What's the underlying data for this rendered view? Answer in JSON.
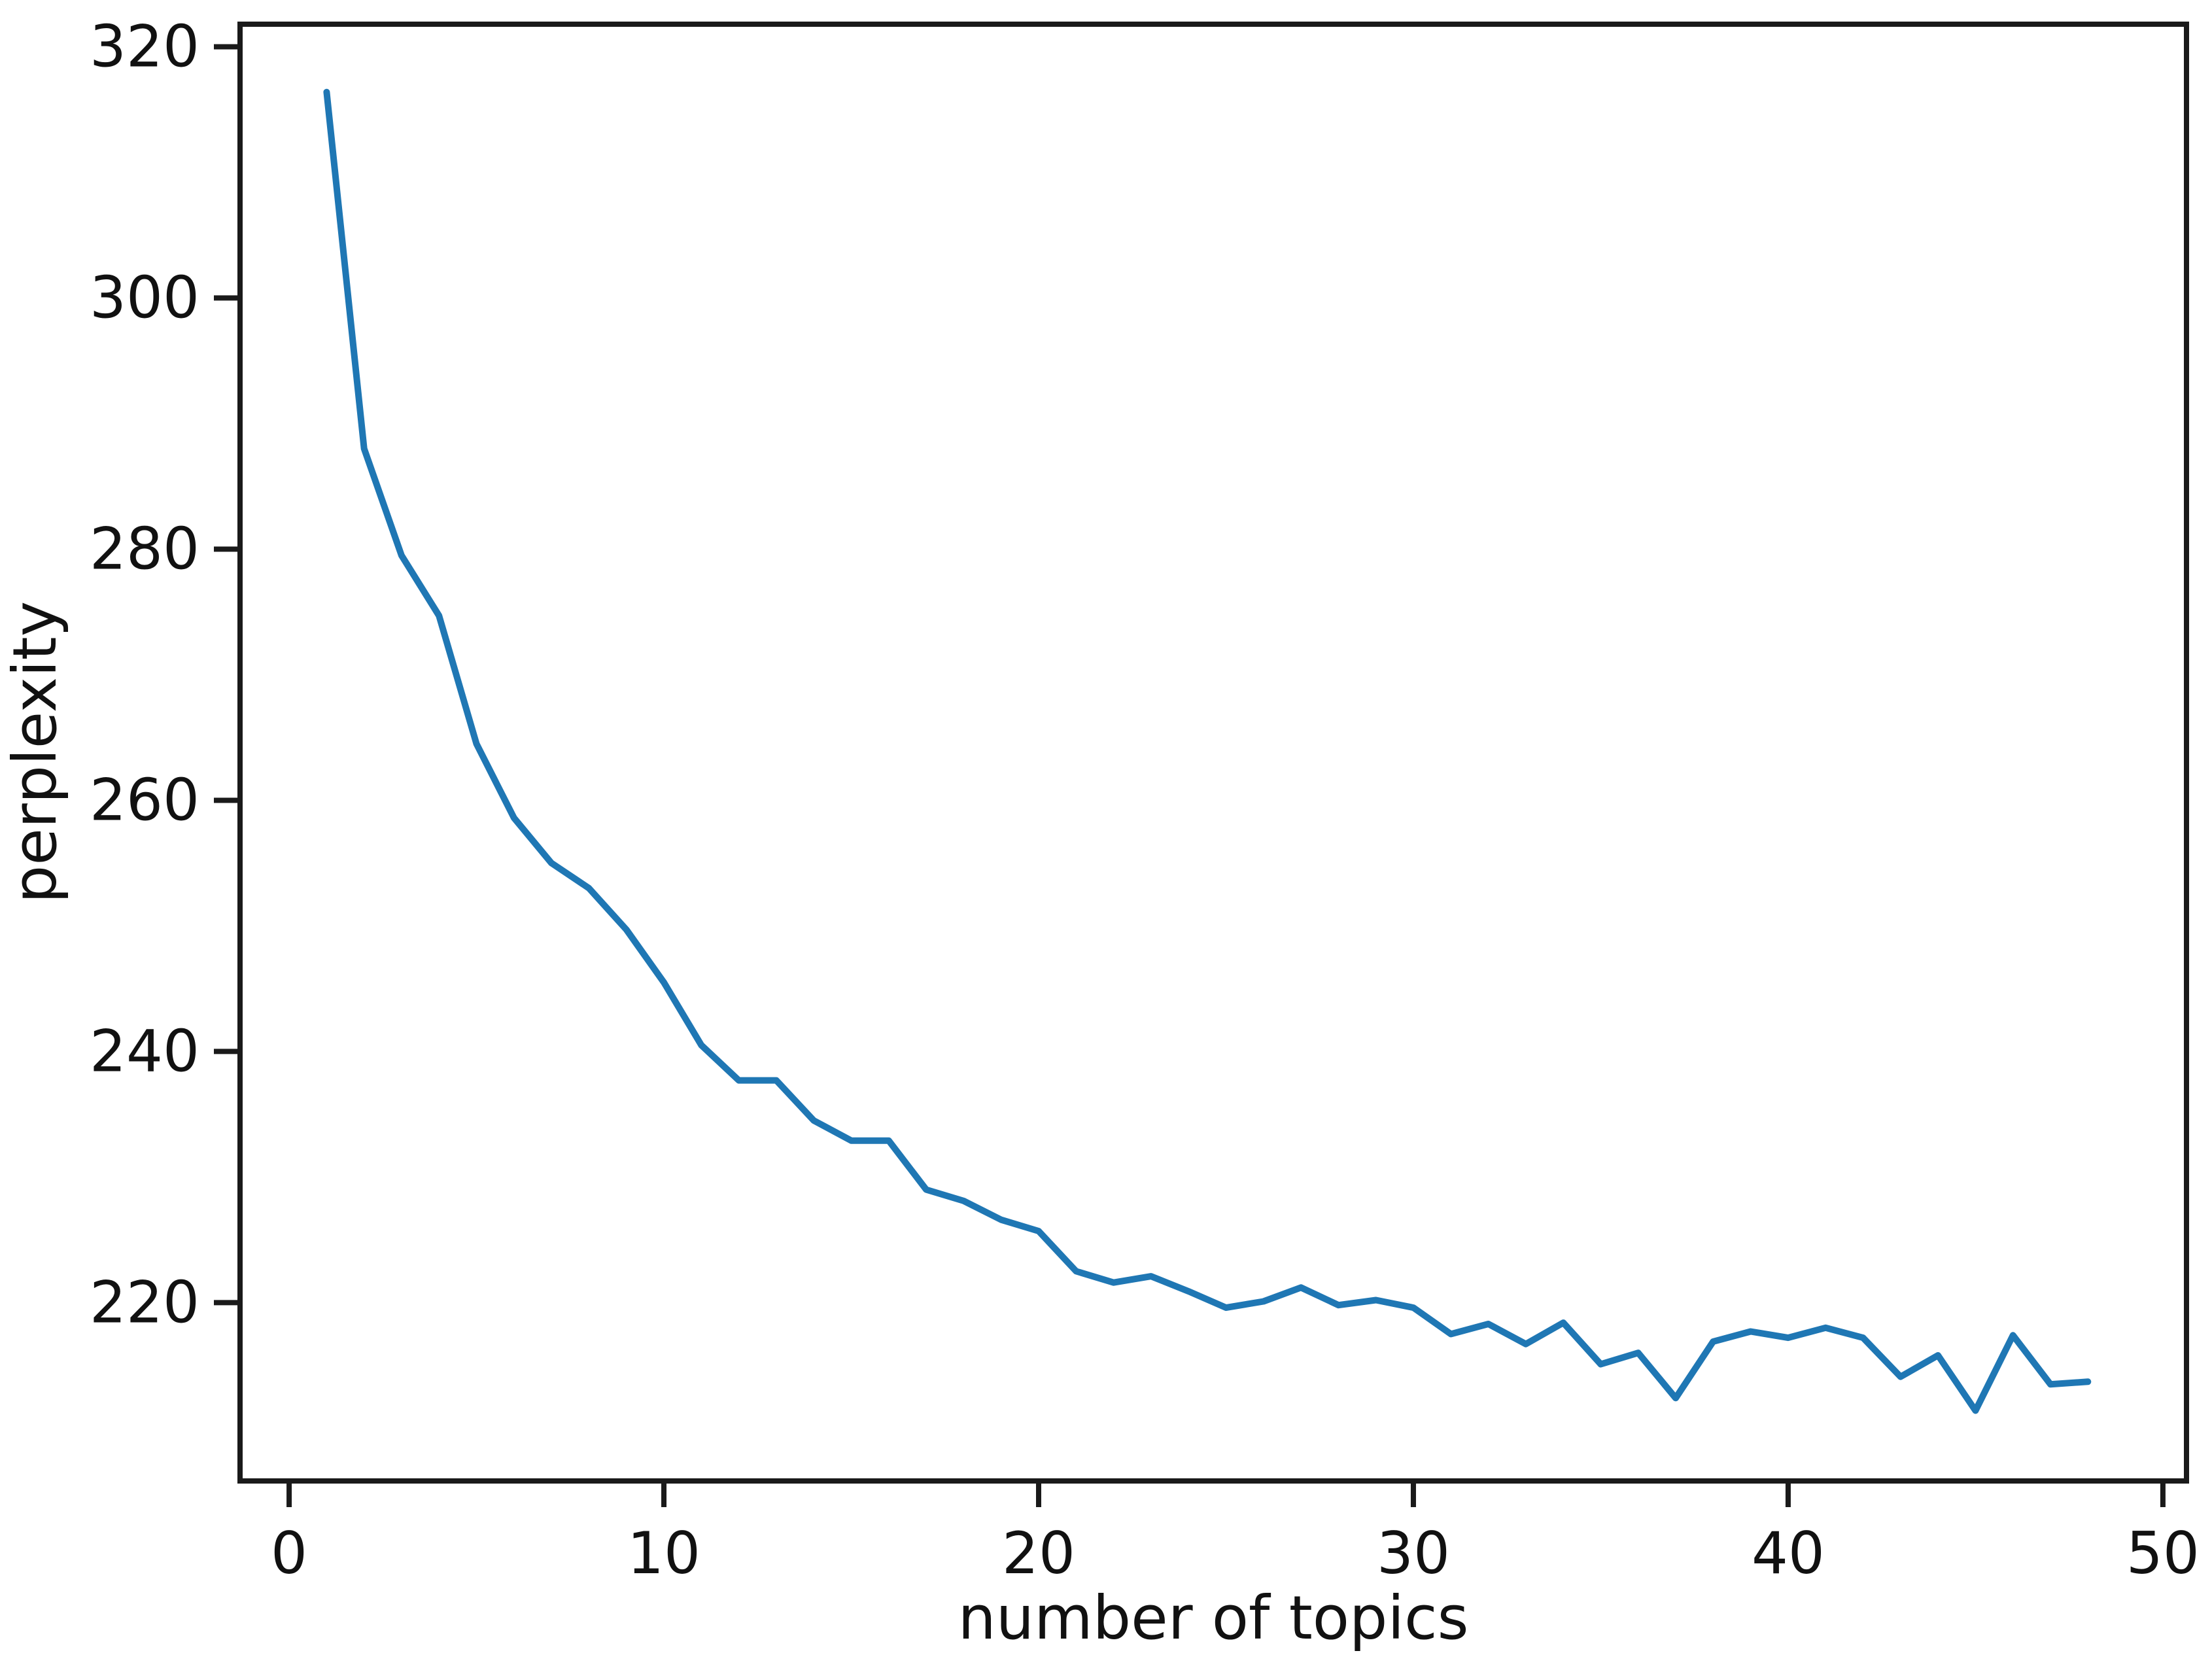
{
  "chart_data": {
    "type": "line",
    "title": "",
    "xlabel": "number of topics",
    "ylabel": "perplexity",
    "series": [
      {
        "name": "perplexity",
        "x": [
          1,
          2,
          3,
          4,
          5,
          6,
          7,
          8,
          9,
          10,
          11,
          12,
          13,
          14,
          15,
          16,
          17,
          18,
          19,
          20,
          21,
          22,
          23,
          24,
          25,
          26,
          27,
          28,
          29,
          30,
          31,
          32,
          33,
          34,
          35,
          36,
          37,
          38,
          39,
          40,
          41,
          42,
          43,
          44,
          45,
          46,
          47,
          48
        ],
        "y": [
          316.4,
          288.0,
          279.5,
          274.7,
          264.5,
          258.6,
          255.0,
          253.0,
          249.7,
          245.5,
          240.5,
          237.7,
          237.7,
          234.5,
          232.9,
          232.9,
          229.0,
          228.1,
          226.6,
          225.7,
          222.5,
          221.6,
          222.1,
          220.9,
          219.6,
          220.1,
          221.2,
          219.8,
          220.2,
          219.6,
          217.5,
          218.3,
          216.7,
          218.4,
          215.1,
          216.0,
          212.4,
          216.9,
          217.7,
          217.2,
          218.0,
          217.2,
          214.1,
          215.8,
          211.4,
          217.4,
          213.5,
          213.7
        ]
      }
    ],
    "xlim": [
      -1.31,
      50.63
    ],
    "ylim": [
      205.8,
      321.8
    ],
    "x_ticks": [
      0,
      10,
      20,
      30,
      40,
      50
    ],
    "y_ticks": [
      220,
      240,
      260,
      280,
      300,
      320
    ],
    "grid": false,
    "legend_position": "none",
    "line_color": "#1f77b4",
    "axis_color": "#1a1a1a"
  }
}
